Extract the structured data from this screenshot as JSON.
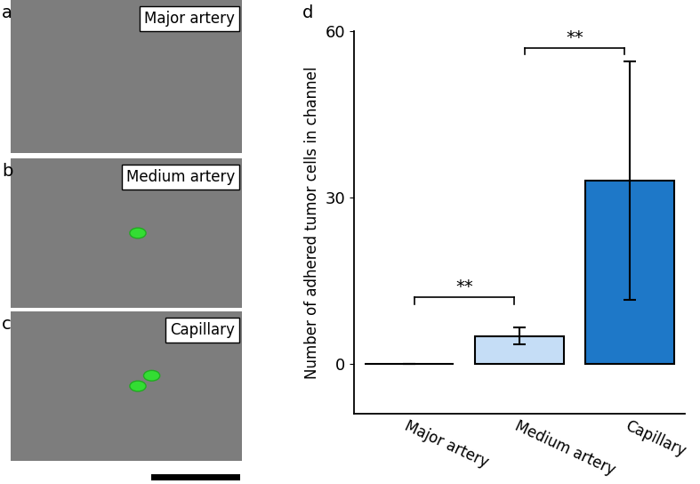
{
  "image_panels": [
    {
      "letter": "a",
      "label": "Major artery"
    },
    {
      "letter": "b",
      "label": "Medium artery"
    },
    {
      "letter": "c",
      "label": "Capillary"
    }
  ],
  "chart_panel_letter": "d",
  "chart_data": {
    "type": "bar",
    "y_label": "Number of adhered tumor cells in channel",
    "categories": [
      "Major artery",
      "Medium artery",
      "Capillary"
    ],
    "values": [
      0,
      5,
      33
    ],
    "errors": [
      0,
      1.5,
      21.5
    ],
    "colors": [
      "#ffffff",
      "#c5ddf6",
      "#1e78c8"
    ],
    "ylim": [
      -9,
      60
    ],
    "yticks": [
      0,
      30,
      60
    ],
    "annotations": [
      {
        "text": "**",
        "from": 0,
        "to": 1,
        "y": 12
      },
      {
        "text": "**",
        "from": 1,
        "to": 2,
        "y": 57
      }
    ]
  }
}
